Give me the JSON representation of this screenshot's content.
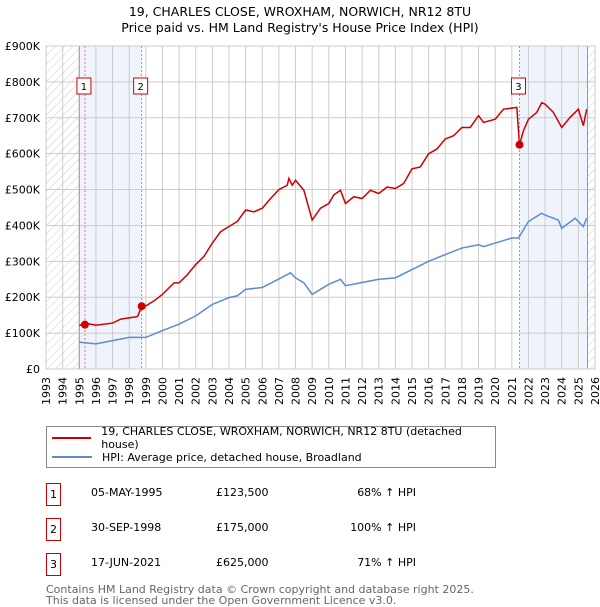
{
  "title": "19, CHARLES CLOSE, WROXHAM, NORWICH, NR12 8TU",
  "subtitle": "Price paid vs. HM Land Registry's House Price Index (HPI)",
  "chart_data": {
    "type": "line",
    "xlim": [
      1993,
      2026
    ],
    "ylim": [
      0,
      900000
    ],
    "y_ticks": [
      0,
      100000,
      200000,
      300000,
      400000,
      500000,
      600000,
      700000,
      800000,
      900000
    ],
    "y_tick_labels": [
      "£0",
      "£100K",
      "£200K",
      "£300K",
      "£400K",
      "£500K",
      "£600K",
      "£700K",
      "£800K",
      "£900K"
    ],
    "x_ticks": [
      1993,
      1994,
      1995,
      1996,
      1997,
      1998,
      1999,
      2000,
      2001,
      2002,
      2003,
      2004,
      2005,
      2006,
      2007,
      2008,
      2009,
      2010,
      2011,
      2012,
      2013,
      2014,
      2015,
      2016,
      2017,
      2018,
      2019,
      2020,
      2021,
      2022,
      2023,
      2024,
      2025,
      2026
    ],
    "grid": true,
    "series": [
      {
        "name": "19, CHARLES CLOSE, WROXHAM, NORWICH, NR12 8TU (detached house)",
        "color": "#cc0000",
        "x": [
          1995.0,
          1995.35,
          1996,
          1997,
          1997.5,
          1998.5,
          1998.75,
          1999,
          1999.5,
          2000,
          2000.7,
          2001,
          2001.5,
          2002,
          2002.5,
          2003,
          2003.5,
          2004,
          2004.5,
          2005,
          2005.5,
          2006,
          2006.5,
          2007,
          2007.5,
          2007.6,
          2007.8,
          2008,
          2008.5,
          2009,
          2009.5,
          2010,
          2010.3,
          2010.7,
          2011,
          2011.5,
          2012,
          2012.5,
          2013,
          2013.5,
          2014,
          2014.5,
          2015,
          2015.5,
          2016,
          2016.5,
          2017,
          2017.5,
          2018,
          2018.5,
          2019,
          2019.3,
          2020,
          2020.5,
          2021,
          2021.3,
          2021.46,
          2021.7,
          2022,
          2022.5,
          2022.8,
          2023,
          2023.5,
          2024,
          2024.5,
          2025,
          2025.3,
          2025.5
        ],
        "y": [
          121000,
          128000,
          122000,
          128000,
          139000,
          146000,
          175000,
          176000,
          190000,
          208000,
          240000,
          240000,
          263000,
          291000,
          314000,
          351000,
          383000,
          397000,
          411000,
          443000,
          438000,
          448000,
          475000,
          500000,
          512000,
          531000,
          512000,
          526000,
          498000,
          415000,
          448000,
          461000,
          485000,
          498000,
          461000,
          480000,
          475000,
          498000,
          489000,
          507000,
          503000,
          517000,
          558000,
          563000,
          600000,
          613000,
          641000,
          650000,
          673000,
          673000,
          706000,
          687000,
          696000,
          724000,
          727000,
          729000,
          625000,
          664000,
          696000,
          715000,
          742000,
          738000,
          715000,
          673000,
          701000,
          724000,
          678000,
          724000
        ]
      },
      {
        "name": "HPI: Average price, detached house, Broadland",
        "color": "#5b8bd0",
        "x": [
          1995,
          1996,
          1997,
          1998,
          1999,
          2000,
          2001,
          2002,
          2003,
          2004,
          2004.5,
          2005,
          2006,
          2007,
          2007.7,
          2008,
          2008.5,
          2009,
          2009.5,
          2010,
          2010.7,
          2011,
          2012,
          2013,
          2014,
          2015,
          2016,
          2017,
          2018,
          2019,
          2019.3,
          2020,
          2021,
          2021.4,
          2022,
          2022.8,
          2023,
          2023.8,
          2024,
          2024.8,
          2025.3,
          2025.5
        ],
        "y": [
          75000,
          70000,
          79000,
          88000,
          88000,
          107000,
          125000,
          148000,
          180000,
          199000,
          204000,
          222000,
          227000,
          251000,
          268000,
          254000,
          240000,
          208000,
          222000,
          236000,
          250000,
          232000,
          241000,
          250000,
          254000,
          277000,
          300000,
          319000,
          337000,
          346000,
          341000,
          351000,
          365000,
          365000,
          411000,
          434000,
          429000,
          415000,
          392000,
          420000,
          397000,
          420000
        ]
      }
    ],
    "sales": [
      {
        "label": "1",
        "x": 1995.34,
        "y": 123500,
        "date": "05-MAY-1995",
        "price": "£123,500",
        "hpi": "68% ↑ HPI"
      },
      {
        "label": "2",
        "x": 1998.75,
        "y": 175000,
        "date": "30-SEP-1998",
        "price": "£175,000",
        "hpi": "100% ↑ HPI"
      },
      {
        "label": "3",
        "x": 2021.46,
        "y": 625000,
        "date": "17-JUN-2021",
        "price": "£625,000",
        "hpi": "71% ↑ HPI"
      }
    ],
    "legend_placement": "below"
  },
  "legend": {
    "red": "19, CHARLES CLOSE, WROXHAM, NORWICH, NR12 8TU (detached house)",
    "blue": "HPI: Average price, detached house, Broadland"
  },
  "footer": {
    "line1": "Contains HM Land Registry data © Crown copyright and database right 2025.",
    "line2": "This data is licensed under the Open Government Licence v3.0."
  }
}
